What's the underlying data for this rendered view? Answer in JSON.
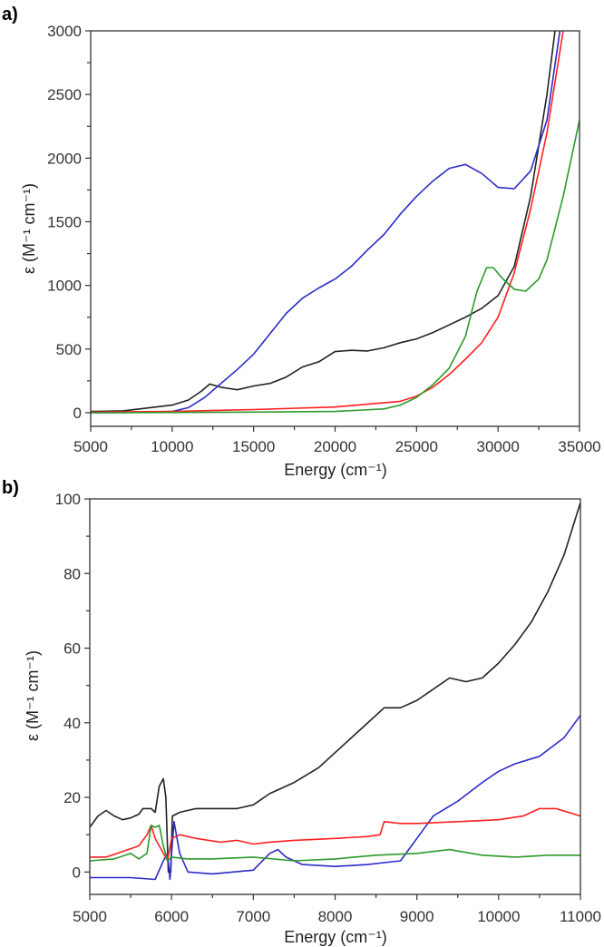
{
  "chart_data": [
    {
      "type": "line",
      "panel_label": "a)",
      "xlabel": "Energy (cm⁻¹)",
      "ylabel": "ε (M⁻¹ cm⁻¹)",
      "xlim": [
        5000,
        35000
      ],
      "ylim": [
        -107,
        3000
      ],
      "xticks": [
        5000,
        10000,
        15000,
        20000,
        25000,
        30000,
        35000
      ],
      "yticks": [
        0,
        500,
        1000,
        1500,
        2000,
        2500,
        3000
      ],
      "x_minor_step": 2500,
      "y_minor_step": 250,
      "grid": false,
      "series": [
        {
          "name": "black",
          "color": "#222222",
          "points": [
            [
              5000,
              10
            ],
            [
              6000,
              12
            ],
            [
              7000,
              15
            ],
            [
              8000,
              30
            ],
            [
              9000,
              45
            ],
            [
              10000,
              60
            ],
            [
              11000,
              100
            ],
            [
              11800,
              170
            ],
            [
              12300,
              225
            ],
            [
              13000,
              200
            ],
            [
              14000,
              180
            ],
            [
              15000,
              210
            ],
            [
              16000,
              230
            ],
            [
              17000,
              280
            ],
            [
              18000,
              360
            ],
            [
              19000,
              400
            ],
            [
              20000,
              480
            ],
            [
              21000,
              490
            ],
            [
              22000,
              485
            ],
            [
              23000,
              510
            ],
            [
              24000,
              550
            ],
            [
              25000,
              580
            ],
            [
              26000,
              630
            ],
            [
              27000,
              690
            ],
            [
              28000,
              750
            ],
            [
              29000,
              820
            ],
            [
              30000,
              920
            ],
            [
              31000,
              1150
            ],
            [
              32000,
              1700
            ],
            [
              33000,
              2500
            ],
            [
              33500,
              3000
            ]
          ]
        },
        {
          "name": "blue",
          "color": "#2b2bc8",
          "points": [
            [
              5000,
              0
            ],
            [
              8000,
              2
            ],
            [
              10000,
              10
            ],
            [
              11000,
              40
            ],
            [
              12000,
              120
            ],
            [
              13000,
              230
            ],
            [
              14000,
              340
            ],
            [
              15000,
              460
            ],
            [
              16000,
              620
            ],
            [
              17000,
              780
            ],
            [
              18000,
              900
            ],
            [
              19000,
              980
            ],
            [
              20000,
              1050
            ],
            [
              21000,
              1150
            ],
            [
              22000,
              1280
            ],
            [
              23000,
              1400
            ],
            [
              24000,
              1560
            ],
            [
              25000,
              1700
            ],
            [
              26000,
              1820
            ],
            [
              27000,
              1920
            ],
            [
              28000,
              1950
            ],
            [
              29000,
              1880
            ],
            [
              30000,
              1770
            ],
            [
              31000,
              1760
            ],
            [
              32000,
              1900
            ],
            [
              33000,
              2300
            ],
            [
              33800,
              3000
            ]
          ]
        },
        {
          "name": "red",
          "color": "#ff2020",
          "points": [
            [
              5000,
              5
            ],
            [
              10000,
              10
            ],
            [
              15000,
              25
            ],
            [
              20000,
              45
            ],
            [
              24000,
              90
            ],
            [
              25000,
              130
            ],
            [
              26000,
              200
            ],
            [
              27000,
              300
            ],
            [
              28000,
              420
            ],
            [
              29000,
              550
            ],
            [
              30000,
              750
            ],
            [
              31000,
              1100
            ],
            [
              32000,
              1600
            ],
            [
              33000,
              2200
            ],
            [
              34000,
              3000
            ]
          ]
        },
        {
          "name": "green",
          "color": "#2a9a2a",
          "points": [
            [
              5000,
              0
            ],
            [
              15000,
              5
            ],
            [
              20000,
              10
            ],
            [
              23000,
              30
            ],
            [
              24000,
              60
            ],
            [
              25000,
              120
            ],
            [
              26000,
              220
            ],
            [
              27000,
              350
            ],
            [
              28000,
              600
            ],
            [
              28700,
              950
            ],
            [
              29300,
              1140
            ],
            [
              29700,
              1140
            ],
            [
              30300,
              1050
            ],
            [
              31000,
              970
            ],
            [
              31700,
              955
            ],
            [
              32500,
              1050
            ],
            [
              33000,
              1200
            ],
            [
              34000,
              1700
            ],
            [
              35000,
              2300
            ]
          ]
        }
      ]
    },
    {
      "type": "line",
      "panel_label": "b)",
      "xlabel": "Energy (cm⁻¹)",
      "ylabel": "ε (M⁻¹ cm⁻¹)",
      "xlim": [
        5000,
        11000
      ],
      "ylim": [
        -6,
        100
      ],
      "xticks": [
        5000,
        6000,
        7000,
        8000,
        9000,
        10000,
        11000
      ],
      "yticks": [
        0,
        20,
        40,
        60,
        80,
        100
      ],
      "x_minor_step": 500,
      "y_minor_step": 10,
      "grid": false,
      "series": [
        {
          "name": "black",
          "color": "#222222",
          "points": [
            [
              5000,
              12
            ],
            [
              5100,
              15
            ],
            [
              5200,
              16.5
            ],
            [
              5300,
              15
            ],
            [
              5400,
              14
            ],
            [
              5500,
              14.5
            ],
            [
              5600,
              15.5
            ],
            [
              5650,
              17
            ],
            [
              5750,
              17
            ],
            [
              5800,
              16
            ],
            [
              5850,
              23
            ],
            [
              5900,
              25
            ],
            [
              5930,
              20
            ],
            [
              5960,
              0
            ],
            [
              5990,
              0
            ],
            [
              6010,
              15
            ],
            [
              6100,
              16
            ],
            [
              6300,
              17
            ],
            [
              6500,
              17
            ],
            [
              6800,
              17
            ],
            [
              7000,
              18
            ],
            [
              7200,
              21
            ],
            [
              7500,
              24
            ],
            [
              7800,
              28
            ],
            [
              8000,
              32
            ],
            [
              8300,
              38
            ],
            [
              8600,
              44
            ],
            [
              8800,
              44
            ],
            [
              9000,
              46
            ],
            [
              9200,
              49
            ],
            [
              9400,
              52
            ],
            [
              9600,
              51
            ],
            [
              9800,
              52
            ],
            [
              10000,
              56
            ],
            [
              10200,
              61
            ],
            [
              10400,
              67
            ],
            [
              10600,
              75
            ],
            [
              10800,
              85
            ],
            [
              11000,
              99
            ]
          ]
        },
        {
          "name": "blue",
          "color": "#2b2bc8",
          "points": [
            [
              5000,
              -1.5
            ],
            [
              5200,
              -1.5
            ],
            [
              5500,
              -1.5
            ],
            [
              5800,
              -2
            ],
            [
              5900,
              3
            ],
            [
              5950,
              5
            ],
            [
              5980,
              -2
            ],
            [
              6000,
              5
            ],
            [
              6030,
              13.5
            ],
            [
              6100,
              5
            ],
            [
              6200,
              0
            ],
            [
              6500,
              -0.5
            ],
            [
              7000,
              0.5
            ],
            [
              7200,
              5
            ],
            [
              7300,
              6
            ],
            [
              7400,
              4
            ],
            [
              7600,
              2
            ],
            [
              8000,
              1.5
            ],
            [
              8400,
              2
            ],
            [
              8600,
              2.5
            ],
            [
              8800,
              3
            ],
            [
              9000,
              9
            ],
            [
              9200,
              15
            ],
            [
              9500,
              19
            ],
            [
              9800,
              24
            ],
            [
              10000,
              27
            ],
            [
              10200,
              29
            ],
            [
              10500,
              31
            ],
            [
              10800,
              36
            ],
            [
              11000,
              42
            ]
          ]
        },
        {
          "name": "red",
          "color": "#ff2020",
          "points": [
            [
              5000,
              4
            ],
            [
              5200,
              4
            ],
            [
              5400,
              5.5
            ],
            [
              5600,
              7
            ],
            [
              5700,
              10
            ],
            [
              5750,
              12.5
            ],
            [
              5800,
              9
            ],
            [
              5900,
              5
            ],
            [
              5950,
              3
            ],
            [
              6000,
              9
            ],
            [
              6100,
              10
            ],
            [
              6300,
              9
            ],
            [
              6600,
              8
            ],
            [
              6800,
              8.5
            ],
            [
              7000,
              7.5
            ],
            [
              7200,
              8
            ],
            [
              7500,
              8.5
            ],
            [
              8000,
              9
            ],
            [
              8400,
              9.5
            ],
            [
              8550,
              10
            ],
            [
              8600,
              13.5
            ],
            [
              8800,
              13
            ],
            [
              9000,
              13
            ],
            [
              9500,
              13.5
            ],
            [
              10000,
              14
            ],
            [
              10300,
              15
            ],
            [
              10500,
              17
            ],
            [
              10700,
              17
            ],
            [
              11000,
              15
            ]
          ]
        },
        {
          "name": "green",
          "color": "#2a9a2a",
          "points": [
            [
              5000,
              3
            ],
            [
              5300,
              3.5
            ],
            [
              5500,
              5
            ],
            [
              5600,
              3.5
            ],
            [
              5700,
              5
            ],
            [
              5750,
              12.5
            ],
            [
              5800,
              12
            ],
            [
              5850,
              12.5
            ],
            [
              5900,
              7
            ],
            [
              5950,
              3
            ],
            [
              6000,
              4
            ],
            [
              6200,
              3.5
            ],
            [
              6500,
              3.5
            ],
            [
              7000,
              4
            ],
            [
              7500,
              3
            ],
            [
              8000,
              3.5
            ],
            [
              8500,
              4.5
            ],
            [
              9000,
              5
            ],
            [
              9400,
              6
            ],
            [
              9800,
              4.5
            ],
            [
              10200,
              4
            ],
            [
              10600,
              4.5
            ],
            [
              11000,
              4.5
            ]
          ]
        }
      ]
    }
  ]
}
